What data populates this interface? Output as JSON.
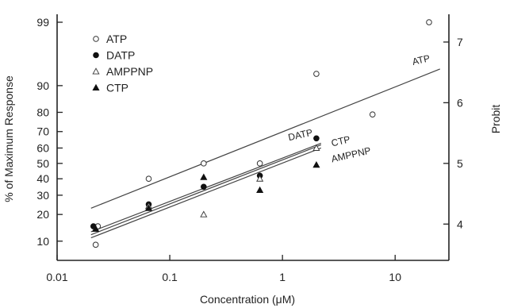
{
  "chart_data": {
    "type": "scatter",
    "title": "",
    "xlabel": "Concentration (μM)",
    "ylabel": "% of Maximum Response",
    "y2label": "Probit",
    "xscale": "log",
    "yscale": "probit",
    "xlim": [
      0.01,
      30
    ],
    "ylim": [
      5.5,
      99.3
    ],
    "grid": false,
    "legend_position": "top-left",
    "x_ticks": [
      {
        "value": 0.01,
        "label": "0.01"
      },
      {
        "value": 0.1,
        "label": "0.1"
      },
      {
        "value": 1,
        "label": "1"
      },
      {
        "value": 10,
        "label": "10"
      }
    ],
    "y_ticks": [
      {
        "value": 10,
        "label": "10"
      },
      {
        "value": 20,
        "label": "20"
      },
      {
        "value": 30,
        "label": "30"
      },
      {
        "value": 40,
        "label": "40"
      },
      {
        "value": 50,
        "label": "50"
      },
      {
        "value": 60,
        "label": "60"
      },
      {
        "value": 70,
        "label": "70"
      },
      {
        "value": 80,
        "label": "80"
      },
      {
        "value": 90,
        "label": "90"
      },
      {
        "value": 99,
        "label": "99"
      }
    ],
    "y2_ticks": [
      {
        "value": 4,
        "label": "4"
      },
      {
        "value": 5,
        "label": "5"
      },
      {
        "value": 6,
        "label": "6"
      },
      {
        "value": 7,
        "label": "7"
      }
    ],
    "series": [
      {
        "name": "ATP",
        "marker": "open-circle",
        "x": [
          0.022,
          0.023,
          0.065,
          0.2,
          0.63,
          2.0,
          6.3,
          20
        ],
        "y": [
          9,
          15,
          40,
          50,
          50,
          93,
          79,
          99
        ]
      },
      {
        "name": "DATP",
        "marker": "filled-circle",
        "x": [
          0.021,
          0.065,
          0.2,
          0.63,
          2.0
        ],
        "y": [
          15,
          25,
          35,
          42,
          66
        ]
      },
      {
        "name": "AMPPNP",
        "marker": "open-triangle",
        "x": [
          0.022,
          0.065,
          0.2,
          0.63,
          2.0
        ],
        "y": [
          14,
          24,
          20,
          40,
          60
        ]
      },
      {
        "name": "CTP",
        "marker": "filled-triangle",
        "x": [
          0.022,
          0.065,
          0.2,
          0.63,
          2.0
        ],
        "y": [
          14,
          23,
          41,
          33,
          49
        ]
      }
    ],
    "fit_lines": [
      {
        "label": "ATP",
        "x": [
          0.02,
          25
        ],
        "y": [
          23,
          94
        ]
      },
      {
        "label": "DATP",
        "x": [
          0.02,
          2.2
        ],
        "y": [
          13,
          63
        ]
      },
      {
        "label": "CTP",
        "x": [
          0.02,
          2.2
        ],
        "y": [
          12,
          62
        ]
      },
      {
        "label": "AMPPNP",
        "x": [
          0.02,
          2.2
        ],
        "y": [
          11,
          60
        ]
      }
    ]
  }
}
